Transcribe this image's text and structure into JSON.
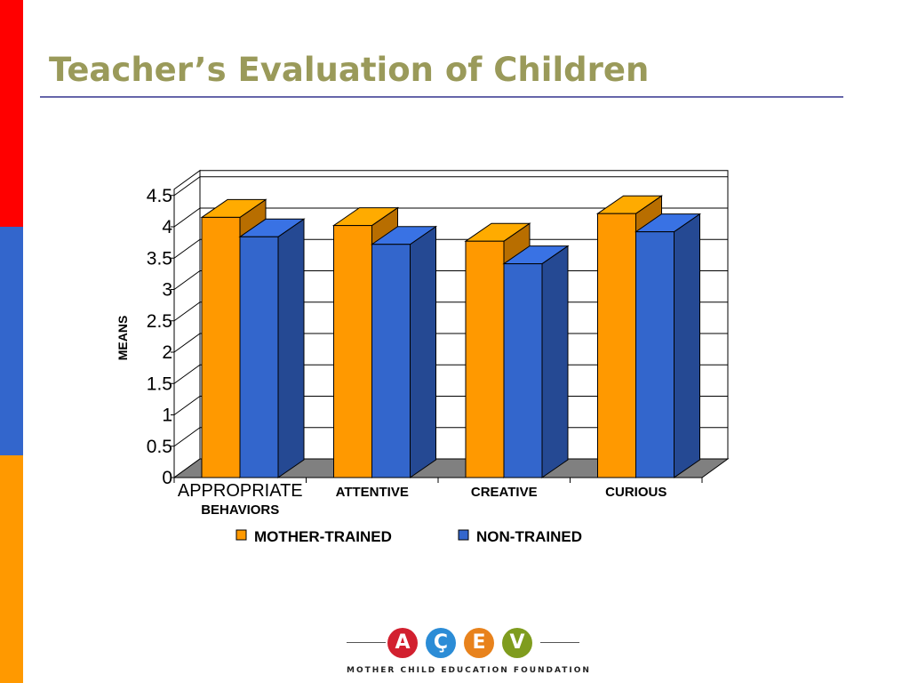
{
  "slide": {
    "title": "Teacher’s Evaluation of Children",
    "title_color": "#9a9a5a",
    "rule_color": "#6666aa",
    "stripe_colors": [
      "#ff0000",
      "#3366cc",
      "#ff9900"
    ]
  },
  "chart_data": {
    "type": "bar",
    "style": "3d-clustered-column",
    "title": "",
    "xlabel": "",
    "ylabel": "MEANS",
    "ylim": [
      0,
      4.5
    ],
    "y_ticks": [
      "0",
      "0.5",
      "1",
      "1.5",
      "2",
      "2.5",
      "3",
      "3.5",
      "4",
      "4.5"
    ],
    "categories": [
      [
        "APPROPRIATE",
        "BEHAVIORS"
      ],
      [
        "ATTENTIVE"
      ],
      [
        "CREATIVE"
      ],
      [
        "CURIOUS"
      ]
    ],
    "series": [
      {
        "name": "MOTHER-TRAINED",
        "color": "#ff9900",
        "values": [
          4.15,
          4.02,
          3.77,
          4.21
        ]
      },
      {
        "name": "NON-TRAINED",
        "color": "#3366cc",
        "values": [
          3.84,
          3.72,
          3.41,
          3.92
        ]
      }
    ],
    "grid": true,
    "legend_position": "bottom",
    "floor_color": "#808080"
  },
  "logo": {
    "letters": [
      "A",
      "Ç",
      "E",
      "V"
    ],
    "colors": [
      "#d2202f",
      "#2b8cd6",
      "#e8821c",
      "#7f9c1e"
    ],
    "caption": "MOTHER CHILD EDUCATION FOUNDATION"
  }
}
